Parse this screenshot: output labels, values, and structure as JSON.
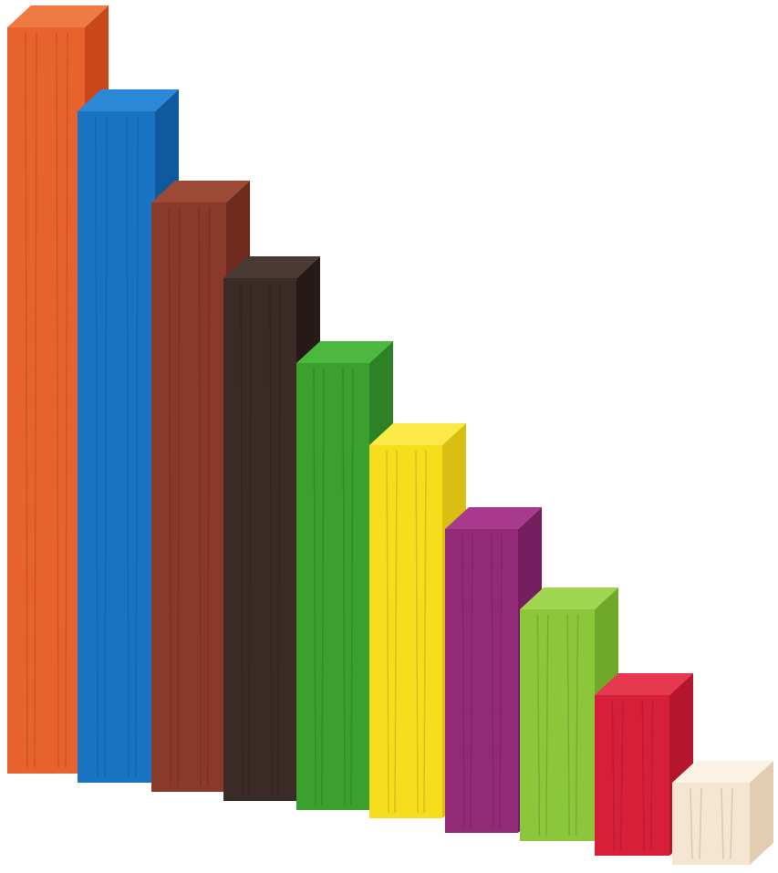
{
  "scene": {
    "background": "#ffffff",
    "description_visible_text": ""
  },
  "rods": [
    {
      "name": "rod-10-orange",
      "units": 10,
      "front": "#e8622e",
      "side": "#c8481a",
      "top": "#f07a44"
    },
    {
      "name": "rod-9-blue",
      "units": 9,
      "front": "#1a73c2",
      "side": "#0f5a9e",
      "top": "#2a88d6"
    },
    {
      "name": "rod-8-brown",
      "units": 8,
      "front": "#8a3a2a",
      "side": "#6e2b1e",
      "top": "#9c4a36"
    },
    {
      "name": "rod-7-black",
      "units": 7,
      "front": "#3a2b26",
      "side": "#261a16",
      "top": "#4a3832"
    },
    {
      "name": "rod-6-dark-green",
      "units": 6,
      "front": "#3aa12e",
      "side": "#2c8224",
      "top": "#4db840"
    },
    {
      "name": "rod-5-yellow",
      "units": 5,
      "front": "#f6de1e",
      "side": "#d9bf12",
      "top": "#fbe948"
    },
    {
      "name": "rod-4-purple",
      "units": 4,
      "front": "#932a78",
      "side": "#751f60",
      "top": "#a73a8c"
    },
    {
      "name": "rod-3-light-green",
      "units": 3,
      "front": "#8cc63a",
      "side": "#70a82a",
      "top": "#a0d650"
    },
    {
      "name": "rod-2-red",
      "units": 2,
      "front": "#d81f3a",
      "side": "#b4162e",
      "top": "#e6384f"
    },
    {
      "name": "rod-1-natural",
      "units": 1,
      "front": "#f5e6d2",
      "side": "#e2cdb2",
      "top": "#fbf1e4"
    }
  ]
}
